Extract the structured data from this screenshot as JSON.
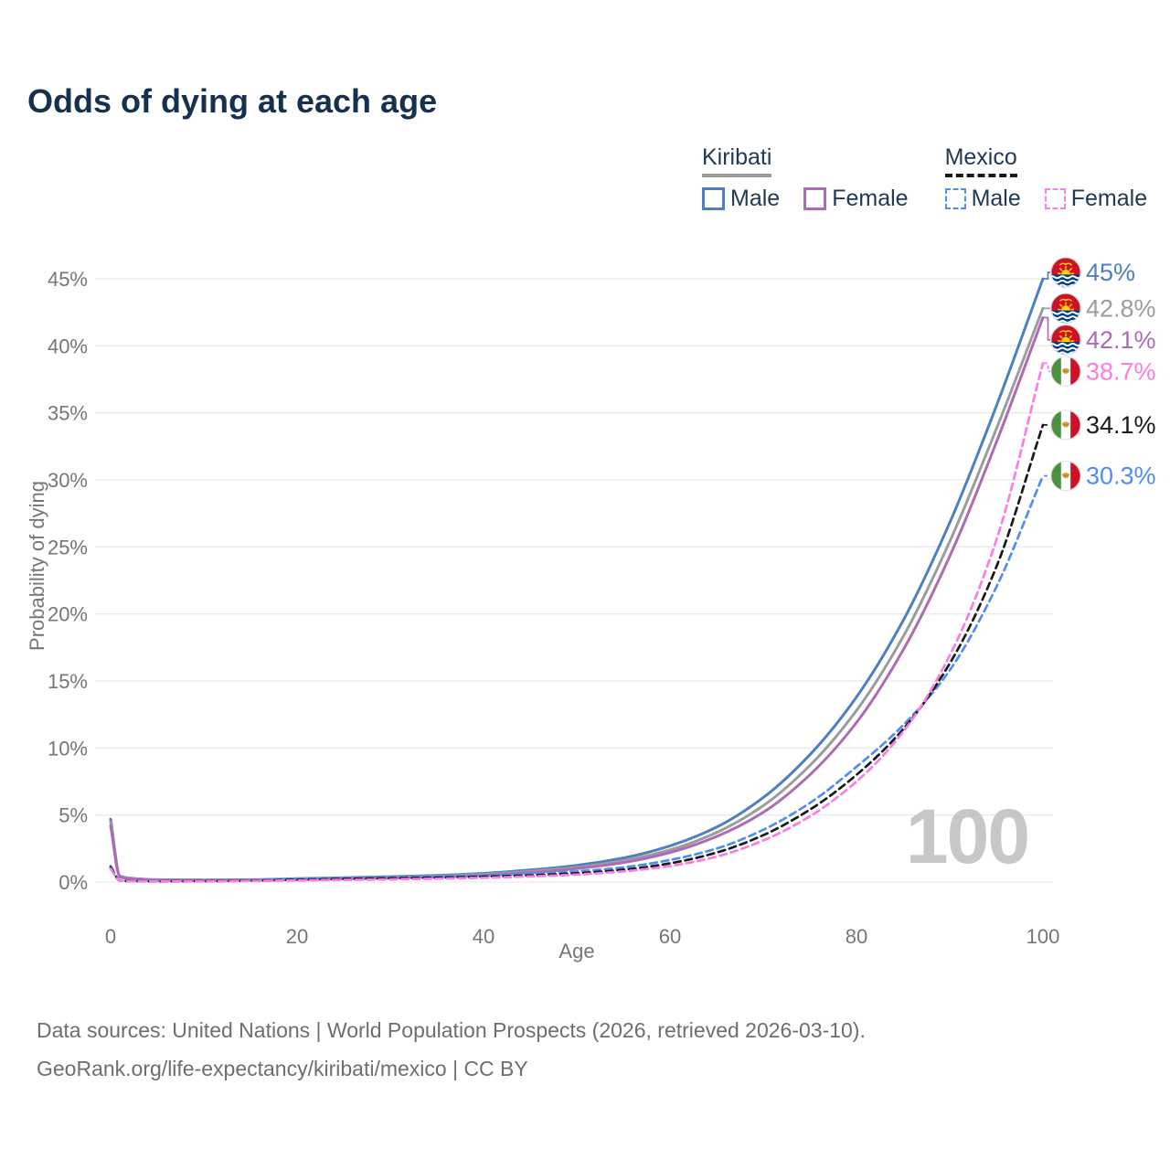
{
  "title": "Odds of dying at each age",
  "watermark_label": "100",
  "legend": {
    "groups": [
      {
        "country": "Kiribati",
        "line_style": "solid",
        "underline_color": "#9b9b9b",
        "items": [
          {
            "label": "Male",
            "color": "#4d7fc1"
          },
          {
            "label": "Female",
            "color": "#ae6bb5"
          }
        ]
      },
      {
        "country": "Mexico",
        "line_style": "dashed",
        "underline_color": "#1a1a1a",
        "items": [
          {
            "label": "Male",
            "color": "#4f8df2"
          },
          {
            "label": "Female",
            "color": "#fb7ce4"
          }
        ]
      }
    ]
  },
  "axes": {
    "x_label": "Age",
    "y_label": "Probability of dying",
    "x_ticks": [
      0,
      20,
      40,
      60,
      80,
      100
    ],
    "y_ticks_percent": [
      0,
      5,
      10,
      15,
      20,
      25,
      30,
      35,
      40,
      45
    ]
  },
  "footer": {
    "line1": "Data sources: United Nations | World Population Prospects (2026, retrieved 2026-03-10).",
    "line2": "GeoRank.org/life-expectancy/kiribati/mexico | CC BY"
  },
  "chart_data": {
    "type": "line",
    "title": "Odds of dying at each age",
    "xlabel": "Age",
    "ylabel": "Probability of dying",
    "x_range": [
      0,
      100
    ],
    "y_range_percent": [
      0,
      45
    ],
    "grid": true,
    "legend_position": "top-right",
    "x": [
      0,
      1,
      2,
      5,
      10,
      15,
      20,
      25,
      30,
      35,
      40,
      45,
      50,
      55,
      60,
      65,
      70,
      75,
      80,
      85,
      90,
      95,
      100
    ],
    "series": [
      {
        "name": "Kiribati Male",
        "country": "Kiribati",
        "sex": "Male",
        "color": "#4d7fc1",
        "dashed": false,
        "flag": "kiribati",
        "end_label": "45%",
        "end_value_percent": 45.0,
        "values": [
          4.7,
          0.45,
          0.3,
          0.18,
          0.15,
          0.18,
          0.25,
          0.33,
          0.4,
          0.5,
          0.65,
          0.9,
          1.25,
          1.8,
          2.7,
          4.1,
          6.3,
          9.5,
          13.8,
          19.5,
          26.8,
          35.5,
          45.0
        ]
      },
      {
        "name": "Kiribati Both sexes",
        "country": "Kiribati",
        "sex": "Both",
        "color": "#9c9c9c",
        "dashed": false,
        "flag": "kiribati",
        "end_label": "42.8%",
        "end_value_percent": 42.8,
        "values": [
          4.5,
          0.42,
          0.28,
          0.17,
          0.14,
          0.16,
          0.22,
          0.29,
          0.35,
          0.44,
          0.58,
          0.8,
          1.1,
          1.6,
          2.4,
          3.7,
          5.7,
          8.7,
          12.8,
          18.3,
          25.4,
          33.8,
          42.8
        ]
      },
      {
        "name": "Kiribati Female",
        "country": "Kiribati",
        "sex": "Female",
        "color": "#ae6bb5",
        "dashed": false,
        "flag": "kiribati",
        "end_label": "42.1%",
        "end_value_percent": 42.1,
        "values": [
          4.2,
          0.38,
          0.26,
          0.15,
          0.13,
          0.14,
          0.18,
          0.24,
          0.3,
          0.38,
          0.5,
          0.7,
          1.0,
          1.45,
          2.2,
          3.4,
          5.2,
          8.0,
          11.9,
          17.3,
          24.3,
          32.8,
          42.1
        ]
      },
      {
        "name": "Mexico Male",
        "country": "Mexico",
        "sex": "Male",
        "color": "#4f8df2",
        "dashed": true,
        "flag": "mexico",
        "end_label": "30.3%",
        "end_value_percent": 30.3,
        "values": [
          1.2,
          0.12,
          0.08,
          0.06,
          0.07,
          0.12,
          0.22,
          0.3,
          0.36,
          0.42,
          0.5,
          0.62,
          0.8,
          1.1,
          1.65,
          2.5,
          3.9,
          5.9,
          8.6,
          11.7,
          15.8,
          22.0,
          30.3
        ]
      },
      {
        "name": "Mexico Both sexes",
        "country": "Mexico",
        "sex": "Both",
        "color": "#1a1a1a",
        "dashed": true,
        "flag": "mexico",
        "end_label": "34.1%",
        "end_value_percent": 34.1,
        "values": [
          1.1,
          0.11,
          0.07,
          0.05,
          0.06,
          0.1,
          0.17,
          0.23,
          0.28,
          0.33,
          0.4,
          0.5,
          0.66,
          0.92,
          1.4,
          2.2,
          3.5,
          5.4,
          8.0,
          11.4,
          16.3,
          23.5,
          34.1
        ]
      },
      {
        "name": "Mexico Female",
        "country": "Mexico",
        "sex": "Female",
        "color": "#fb7ce4",
        "dashed": true,
        "flag": "mexico",
        "end_label": "38.7%",
        "end_value_percent": 38.7,
        "values": [
          1.0,
          0.1,
          0.06,
          0.05,
          0.05,
          0.08,
          0.12,
          0.16,
          0.2,
          0.25,
          0.32,
          0.42,
          0.56,
          0.8,
          1.2,
          1.9,
          3.1,
          4.9,
          7.5,
          11.2,
          16.9,
          25.5,
          38.7
        ]
      }
    ]
  }
}
